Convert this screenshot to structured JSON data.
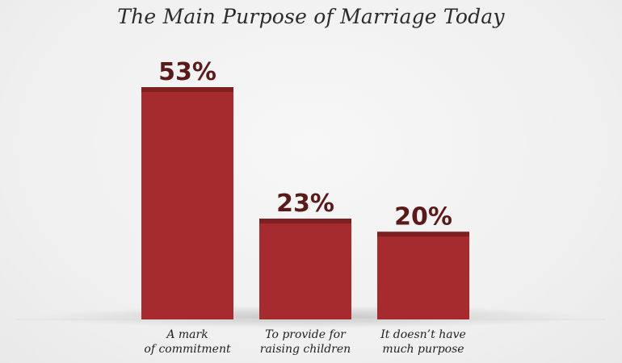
{
  "chart_data": {
    "type": "bar",
    "title": "The Main Purpose of Marriage Today",
    "categories": [
      [
        "A mark",
        "of commitment"
      ],
      [
        "To provide for",
        "raising children"
      ],
      [
        "It doesn’t have",
        "much purpose"
      ]
    ],
    "values": [
      53,
      23,
      20
    ],
    "value_labels": [
      "53%",
      "23%",
      "20%"
    ],
    "xlabel": "",
    "ylabel": "",
    "ylim": [
      0,
      53
    ],
    "grid": false,
    "legend": "none",
    "colors": {
      "bar": "#a62b2e",
      "bar_cap": "#7e1f22",
      "value_text": "#5a1a1a",
      "background": "#f4f4f4"
    }
  }
}
